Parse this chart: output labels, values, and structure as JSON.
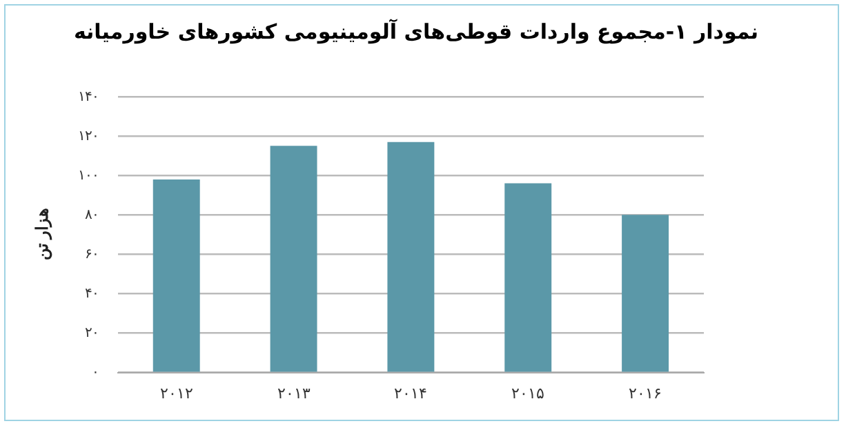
{
  "chart_data": {
    "type": "bar",
    "title": "نمودار ۱-مجموع واردات قوطی‌های آلومینیومی کشورهای خاورمیانه",
    "ylabel": "هزار تن",
    "categories": [
      "۲۰۱۲",
      "۲۰۱۳",
      "۲۰۱۴",
      "۲۰۱۵",
      "۲۰۱۶"
    ],
    "values": [
      98,
      115,
      117,
      96,
      80
    ],
    "color": "#5b98a8",
    "ylim": [
      0,
      140
    ],
    "yticks": [
      {
        "value": 0,
        "label": "۰"
      },
      {
        "value": 20,
        "label": "۲۰"
      },
      {
        "value": 40,
        "label": "۴۰"
      },
      {
        "value": 60,
        "label": "۶۰"
      },
      {
        "value": 80,
        "label": "۸۰"
      },
      {
        "value": 100,
        "label": "۱۰۰"
      },
      {
        "value": 120,
        "label": "۱۲۰"
      },
      {
        "value": 140,
        "label": "۱۴۰"
      }
    ],
    "grid": "y",
    "legend": false
  }
}
